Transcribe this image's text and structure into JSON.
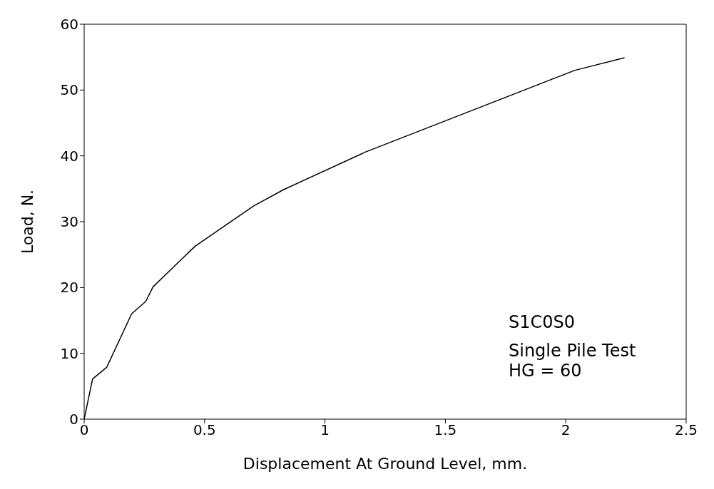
{
  "chart_data": {
    "type": "line",
    "xlabel": "Displacement At Ground Level, mm.",
    "ylabel": "Load, N.",
    "x": [
      0,
      0.035,
      0.094,
      0.197,
      0.256,
      0.286,
      0.433,
      0.462,
      0.704,
      0.83,
      1.169,
      2.038,
      2.244
    ],
    "series": [
      {
        "color": "#000000",
        "values": [
          0,
          6.1,
          7.9,
          16,
          17.9,
          20.1,
          25.3,
          26.3,
          32.4,
          34.9,
          40.6,
          53,
          54.9
        ]
      }
    ],
    "xlim": [
      0,
      2.5
    ],
    "xticks": [
      0,
      0.5,
      1,
      1.5,
      2,
      2.5
    ],
    "ylim": [
      0,
      60
    ],
    "yticks": [
      0,
      10,
      20,
      30,
      40,
      50,
      60
    ],
    "marker": "none",
    "line_style": "solid",
    "annotations": [
      "S1C0S0",
      "Single Pile Test\nHG = 60"
    ]
  }
}
